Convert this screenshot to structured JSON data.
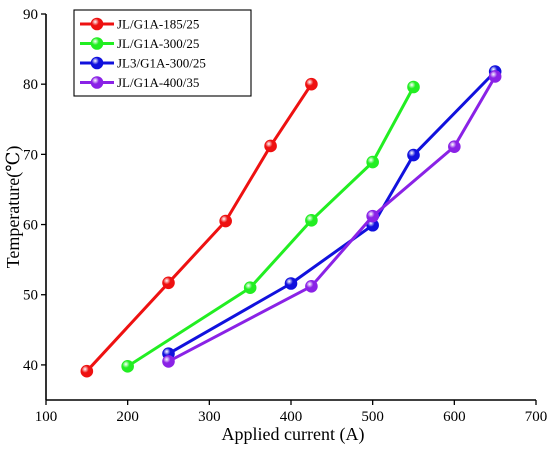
{
  "chart_data": {
    "type": "line",
    "xlabel": "Applied current (A)",
    "ylabel": "Temperature(℃)",
    "xlim": [
      100,
      700
    ],
    "ylim": [
      35,
      90
    ],
    "xticks": [
      100,
      200,
      300,
      400,
      500,
      600,
      700
    ],
    "yticks": [
      40,
      50,
      60,
      70,
      80,
      90
    ],
    "grid": false,
    "legend_position": "top-left",
    "series": [
      {
        "name": "JL/G1A-185/25",
        "color": "#ee1111",
        "x": [
          150,
          250,
          320,
          375,
          425
        ],
        "y": [
          39.1,
          51.7,
          60.5,
          71.2,
          80.0
        ]
      },
      {
        "name": "JL/G1A-300/25",
        "color": "#22ee22",
        "x": [
          200,
          350,
          425,
          500,
          550
        ],
        "y": [
          39.8,
          51.0,
          60.6,
          68.9,
          79.6
        ]
      },
      {
        "name": "JL3/G1A-300/25",
        "color": "#1111dd",
        "x": [
          250,
          400,
          500,
          550,
          650
        ],
        "y": [
          41.6,
          51.6,
          59.9,
          69.9,
          81.8
        ]
      },
      {
        "name": "JL/G1A-400/35",
        "color": "#8a22e6",
        "x": [
          250,
          425,
          500,
          600,
          650
        ],
        "y": [
          40.5,
          51.2,
          61.2,
          71.1,
          81.1
        ]
      }
    ]
  }
}
